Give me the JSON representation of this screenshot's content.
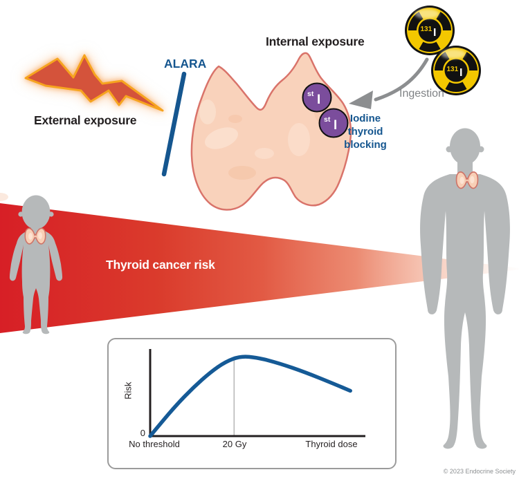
{
  "labels": {
    "external_exposure": "External exposure",
    "alara": "ALARA",
    "internal_exposure": "Internal exposure",
    "ingestion": "Ingestion",
    "iodine_thyroid_blocking": "Iodine thyroid blocking",
    "thyroid_cancer_risk": "Thyroid cancer risk",
    "copyright": "© 2023 Endocrine Society"
  },
  "isotope_capsule": {
    "superscript": "131",
    "letter": "I"
  },
  "stable_iodine_capsule": {
    "superscript": "st",
    "letter": "I"
  },
  "icons": {
    "radiation_bolt": "jagged-lightning-bolt-external-radiation",
    "radiation_trefoil": "radioactive-trefoil-capsule",
    "ingestion_arrow": "curved-gray-arrow",
    "alara_bar": "blue-diagonal-blocking-bar",
    "thyroid_gland": "butterfly-thyroid-gland",
    "child_silhouette": "standing-child-gray-silhouette",
    "adult_silhouette": "standing-adult-gray-silhouette",
    "risk_wedge": "red-gradient-risk-wedge"
  },
  "colors": {
    "accent_blue": "#15568f",
    "wedge_red": "#d71f26",
    "bolt_fill": "#d4533b",
    "bolt_outline": "#f6a41f",
    "trefoil_yellow": "#f3c700",
    "stable_iodine_purple": "#7b4d9c",
    "silhouette_gray": "#b6b9ba",
    "thyroid_fill": "#f9d2bb",
    "thyroid_outline": "#d9736a",
    "text_gray": "#7f8285",
    "curve_blue": "#155a96"
  },
  "chart_data": {
    "type": "line",
    "title": "",
    "ylabel": "Risk",
    "origin_label": "0",
    "x_ticks": [
      {
        "label": "No threshold",
        "pos": 0.0
      },
      {
        "label": "20 Gy",
        "pos": 0.39
      },
      {
        "label": "Thyroid dose",
        "pos": 0.84
      }
    ],
    "grid": "single vertical reference line at 20 Gy",
    "legend": "none",
    "axis_note": "x = thyroid dose (unitless fractions of drawn axis), y = relative risk 0..1",
    "series": [
      {
        "name": "Thyroid cancer risk vs thyroid dose",
        "x": [
          0,
          0.05,
          0.12,
          0.2,
          0.28,
          0.35,
          0.42,
          0.5,
          0.6,
          0.72,
          0.85,
          0.93
        ],
        "y": [
          0,
          0.16,
          0.38,
          0.6,
          0.79,
          0.92,
          0.99,
          0.97,
          0.9,
          0.79,
          0.65,
          0.56
        ]
      }
    ],
    "peak": {
      "at_tick": "20 Gy",
      "y": 1.0
    },
    "shape_note": "no-threshold linear rise from 0, peak near 20 Gy, gentle decline at higher dose"
  }
}
